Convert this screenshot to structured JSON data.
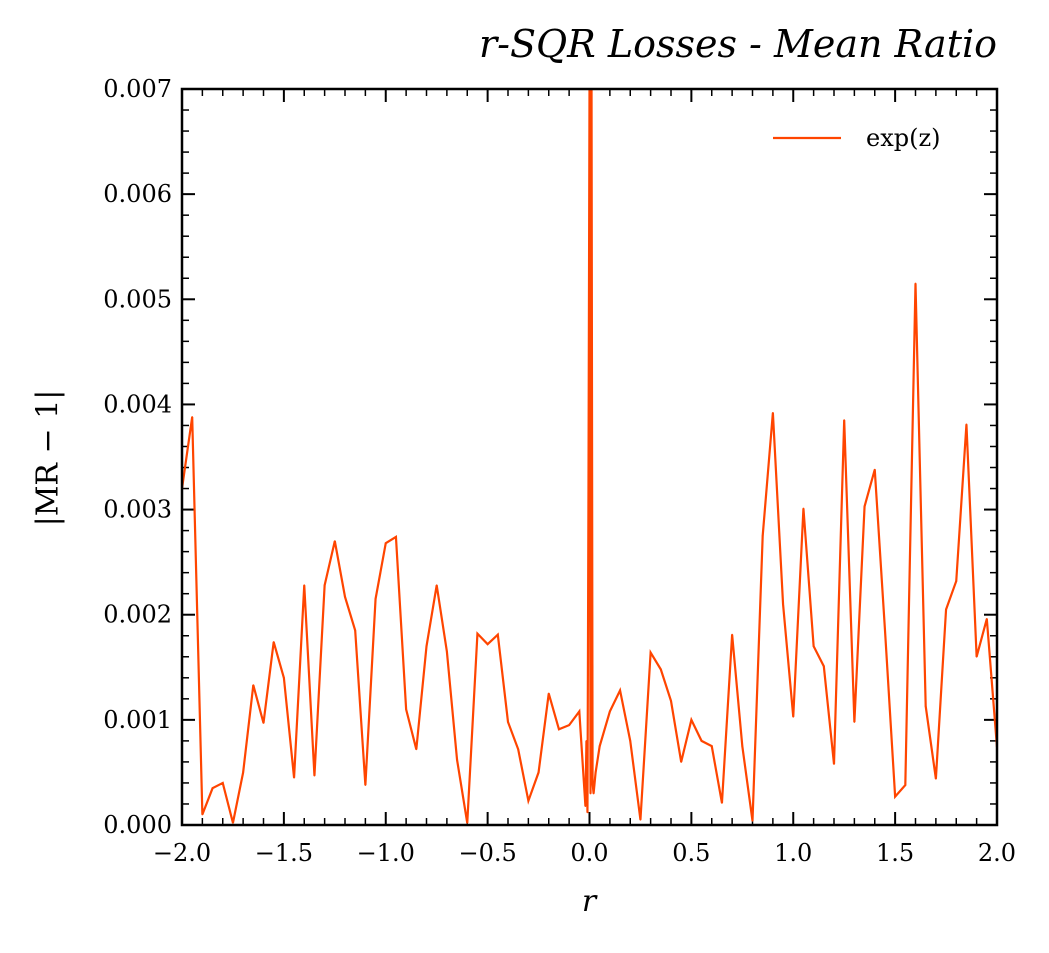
{
  "chart_data": {
    "type": "line",
    "title": "r-SQR Losses - Mean Ratio",
    "xlabel": "r",
    "ylabel": "|MR − 1|",
    "xlim": [
      -2.0,
      2.0
    ],
    "ylim": [
      0.0,
      0.007
    ],
    "x_ticks": [
      -2.0,
      -1.5,
      -1.0,
      -0.5,
      0.0,
      0.5,
      1.0,
      1.5,
      2.0
    ],
    "x_tick_labels": [
      "−2.0",
      "−1.5",
      "−1.0",
      "−0.5",
      "0.0",
      "0.5",
      "1.0",
      "1.5",
      "2.0"
    ],
    "y_ticks": [
      0.0,
      0.001,
      0.002,
      0.003,
      0.004,
      0.005,
      0.006,
      0.007
    ],
    "y_tick_labels": [
      "0.000",
      "0.001",
      "0.002",
      "0.003",
      "0.004",
      "0.005",
      "0.006",
      "0.007"
    ],
    "grid": false,
    "legend_position": "top-right",
    "series": [
      {
        "name": "exp(z)",
        "color": "#ff4500",
        "x": [
          -2.0,
          -1.95,
          -1.9,
          -1.85,
          -1.8,
          -1.75,
          -1.7,
          -1.65,
          -1.6,
          -1.55,
          -1.5,
          -1.45,
          -1.4,
          -1.35,
          -1.3,
          -1.25,
          -1.2,
          -1.15,
          -1.1,
          -1.05,
          -1.0,
          -0.95,
          -0.9,
          -0.85,
          -0.8,
          -0.75,
          -0.7,
          -0.65,
          -0.6,
          -0.55,
          -0.5,
          -0.45,
          -0.4,
          -0.35,
          -0.3,
          -0.25,
          -0.2,
          -0.15,
          -0.1,
          -0.05,
          -0.02,
          -0.015,
          -0.01,
          -0.005,
          0.0,
          0.005,
          0.01,
          0.015,
          0.02,
          0.03,
          0.05,
          0.1,
          0.15,
          0.2,
          0.25,
          0.3,
          0.35,
          0.4,
          0.45,
          0.5,
          0.55,
          0.6,
          0.65,
          0.7,
          0.75,
          0.8,
          0.85,
          0.9,
          0.95,
          1.0,
          1.05,
          1.1,
          1.15,
          1.2,
          1.25,
          1.3,
          1.35,
          1.4,
          1.45,
          1.5,
          1.55,
          1.6,
          1.65,
          1.7,
          1.75,
          1.8,
          1.85,
          1.9,
          1.95,
          2.0
        ],
        "y": [
          0.0032,
          0.00388,
          0.0001,
          0.00035,
          0.0004,
          2e-05,
          0.0005,
          0.00133,
          0.00097,
          0.00174,
          0.0014,
          0.00045,
          0.00228,
          0.00047,
          0.00228,
          0.0027,
          0.00217,
          0.00185,
          0.00038,
          0.00215,
          0.00268,
          0.00274,
          0.0011,
          0.00072,
          0.0017,
          0.00228,
          0.00165,
          0.00062,
          2e-05,
          0.00182,
          0.00172,
          0.00181,
          0.00098,
          0.00072,
          0.00023,
          0.0005,
          0.00125,
          0.00091,
          0.00095,
          0.00108,
          0.00018,
          0.0008,
          0.00012,
          0.0032,
          0.007,
          0.0003,
          0.007,
          0.0004,
          0.0003,
          0.0005,
          0.00075,
          0.00108,
          0.00128,
          0.0008,
          5e-05,
          0.00164,
          0.00148,
          0.00118,
          0.0006,
          0.001,
          0.0008,
          0.00075,
          0.00021,
          0.00181,
          0.00075,
          4e-05,
          0.00275,
          0.00392,
          0.0021,
          0.00103,
          0.00301,
          0.0017,
          0.00151,
          0.00058,
          0.00385,
          0.00098,
          0.00303,
          0.00338,
          0.00186,
          0.00027,
          0.00038,
          0.00515,
          0.00113,
          0.00044,
          0.00205,
          0.00232,
          0.00381,
          0.0016,
          0.00196,
          0.00074
        ]
      }
    ]
  }
}
